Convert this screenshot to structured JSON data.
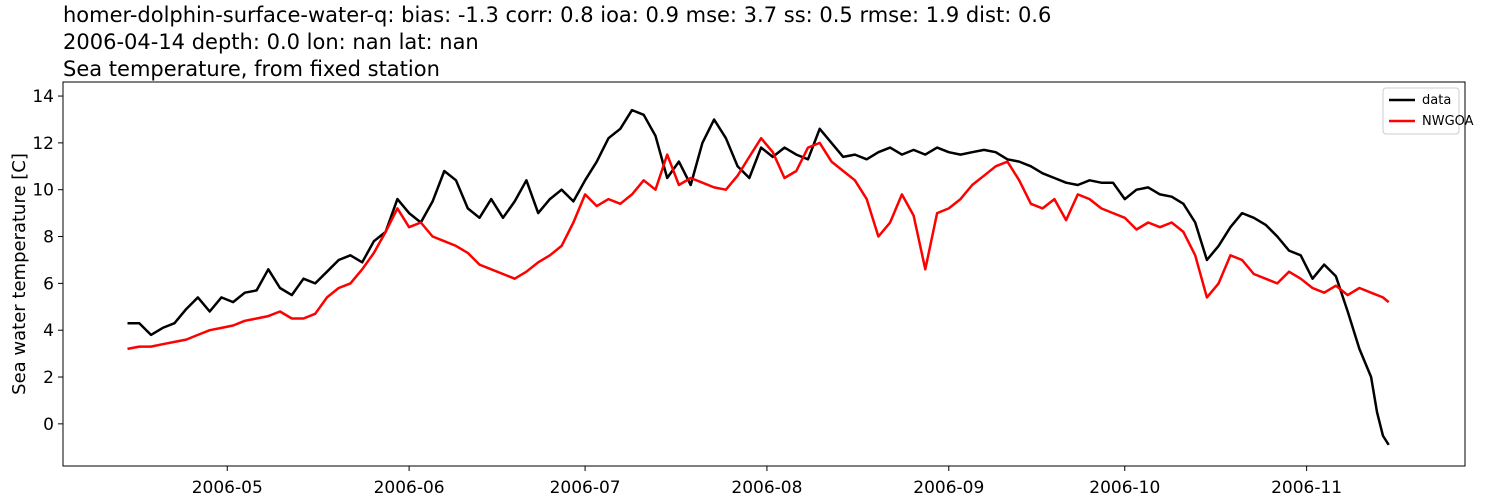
{
  "chart_data": {
    "type": "line",
    "title_lines": [
      "homer-dolphin-surface-water-q: bias: -1.3  corr: 0.8  ioa: 0.9  mse: 3.7  ss: 0.5  rmse: 1.9  dist: 0.6",
      "2006-04-14 depth: 0.0 lon: nan lat: nan",
      "Sea temperature, from fixed station"
    ],
    "xlabel": "",
    "ylabel": "Sea water temperature [C]",
    "xlim": [
      "2006-04-03",
      "2006-11-28"
    ],
    "ylim": [
      -1.8,
      14.6
    ],
    "x_ticks": [
      "2006-05-01",
      "2006-06-01",
      "2006-07-01",
      "2006-08-01",
      "2006-09-01",
      "2006-10-01",
      "2006-11-01"
    ],
    "x_tick_labels": [
      "2006-05",
      "2006-06",
      "2006-07",
      "2006-08",
      "2006-09",
      "2006-10",
      "2006-11"
    ],
    "y_ticks": [
      0,
      2,
      4,
      6,
      8,
      10,
      12,
      14
    ],
    "grid": false,
    "legend": {
      "placement": "top-right",
      "entries": [
        "data",
        "NWGOA"
      ]
    },
    "series": [
      {
        "name": "data",
        "color": "#000000",
        "points": [
          [
            "2006-04-14",
            4.3
          ],
          [
            "2006-04-16",
            4.3
          ],
          [
            "2006-04-18",
            3.8
          ],
          [
            "2006-04-20",
            4.1
          ],
          [
            "2006-04-22",
            4.3
          ],
          [
            "2006-04-24",
            4.9
          ],
          [
            "2006-04-26",
            5.4
          ],
          [
            "2006-04-28",
            4.8
          ],
          [
            "2006-04-30",
            5.4
          ],
          [
            "2006-05-02",
            5.2
          ],
          [
            "2006-05-04",
            5.6
          ],
          [
            "2006-05-06",
            5.7
          ],
          [
            "2006-05-08",
            6.6
          ],
          [
            "2006-05-10",
            5.8
          ],
          [
            "2006-05-12",
            5.5
          ],
          [
            "2006-05-14",
            6.2
          ],
          [
            "2006-05-16",
            6.0
          ],
          [
            "2006-05-18",
            6.5
          ],
          [
            "2006-05-20",
            7.0
          ],
          [
            "2006-05-22",
            7.2
          ],
          [
            "2006-05-24",
            6.9
          ],
          [
            "2006-05-26",
            7.8
          ],
          [
            "2006-05-28",
            8.2
          ],
          [
            "2006-05-30",
            9.6
          ],
          [
            "2006-06-01",
            9.0
          ],
          [
            "2006-06-03",
            8.6
          ],
          [
            "2006-06-05",
            9.5
          ],
          [
            "2006-06-07",
            10.8
          ],
          [
            "2006-06-09",
            10.4
          ],
          [
            "2006-06-11",
            9.2
          ],
          [
            "2006-06-13",
            8.8
          ],
          [
            "2006-06-15",
            9.6
          ],
          [
            "2006-06-17",
            8.8
          ],
          [
            "2006-06-19",
            9.5
          ],
          [
            "2006-06-21",
            10.4
          ],
          [
            "2006-06-23",
            9.0
          ],
          [
            "2006-06-25",
            9.6
          ],
          [
            "2006-06-27",
            10.0
          ],
          [
            "2006-06-29",
            9.5
          ],
          [
            "2006-07-01",
            10.4
          ],
          [
            "2006-07-03",
            11.2
          ],
          [
            "2006-07-05",
            12.2
          ],
          [
            "2006-07-07",
            12.6
          ],
          [
            "2006-07-09",
            13.4
          ],
          [
            "2006-07-11",
            13.2
          ],
          [
            "2006-07-13",
            12.3
          ],
          [
            "2006-07-15",
            10.5
          ],
          [
            "2006-07-17",
            11.2
          ],
          [
            "2006-07-19",
            10.2
          ],
          [
            "2006-07-21",
            12.0
          ],
          [
            "2006-07-23",
            13.0
          ],
          [
            "2006-07-25",
            12.2
          ],
          [
            "2006-07-27",
            11.0
          ],
          [
            "2006-07-29",
            10.5
          ],
          [
            "2006-07-31",
            11.8
          ],
          [
            "2006-08-02",
            11.4
          ],
          [
            "2006-08-04",
            11.8
          ],
          [
            "2006-08-06",
            11.5
          ],
          [
            "2006-08-08",
            11.3
          ],
          [
            "2006-08-10",
            12.6
          ],
          [
            "2006-08-12",
            12.0
          ],
          [
            "2006-08-14",
            11.4
          ],
          [
            "2006-08-16",
            11.5
          ],
          [
            "2006-08-18",
            11.3
          ],
          [
            "2006-08-20",
            11.6
          ],
          [
            "2006-08-22",
            11.8
          ],
          [
            "2006-08-24",
            11.5
          ],
          [
            "2006-08-26",
            11.7
          ],
          [
            "2006-08-28",
            11.5
          ],
          [
            "2006-08-30",
            11.8
          ],
          [
            "2006-09-01",
            11.6
          ],
          [
            "2006-09-03",
            11.5
          ],
          [
            "2006-09-05",
            11.6
          ],
          [
            "2006-09-07",
            11.7
          ],
          [
            "2006-09-09",
            11.6
          ],
          [
            "2006-09-11",
            11.3
          ],
          [
            "2006-09-13",
            11.2
          ],
          [
            "2006-09-15",
            11.0
          ],
          [
            "2006-09-17",
            10.7
          ],
          [
            "2006-09-19",
            10.5
          ],
          [
            "2006-09-21",
            10.3
          ],
          [
            "2006-09-23",
            10.2
          ],
          [
            "2006-09-25",
            10.4
          ],
          [
            "2006-09-27",
            10.3
          ],
          [
            "2006-09-29",
            10.3
          ],
          [
            "2006-10-01",
            9.6
          ],
          [
            "2006-10-03",
            10.0
          ],
          [
            "2006-10-05",
            10.1
          ],
          [
            "2006-10-07",
            9.8
          ],
          [
            "2006-10-09",
            9.7
          ],
          [
            "2006-10-11",
            9.4
          ],
          [
            "2006-10-13",
            8.6
          ],
          [
            "2006-10-15",
            7.0
          ],
          [
            "2006-10-17",
            7.6
          ],
          [
            "2006-10-19",
            8.4
          ],
          [
            "2006-10-21",
            9.0
          ],
          [
            "2006-10-23",
            8.8
          ],
          [
            "2006-10-25",
            8.5
          ],
          [
            "2006-10-27",
            8.0
          ],
          [
            "2006-10-29",
            7.4
          ],
          [
            "2006-10-31",
            7.2
          ],
          [
            "2006-11-02",
            6.2
          ],
          [
            "2006-11-04",
            6.8
          ],
          [
            "2006-11-06",
            6.3
          ],
          [
            "2006-11-08",
            4.8
          ],
          [
            "2006-11-10",
            3.2
          ],
          [
            "2006-11-12",
            2.0
          ],
          [
            "2006-11-13",
            0.5
          ],
          [
            "2006-11-14",
            -0.5
          ],
          [
            "2006-11-15",
            -0.9
          ]
        ]
      },
      {
        "name": "NWGOA",
        "color": "#ff0000",
        "points": [
          [
            "2006-04-14",
            3.2
          ],
          [
            "2006-04-16",
            3.3
          ],
          [
            "2006-04-18",
            3.3
          ],
          [
            "2006-04-20",
            3.4
          ],
          [
            "2006-04-22",
            3.5
          ],
          [
            "2006-04-24",
            3.6
          ],
          [
            "2006-04-26",
            3.8
          ],
          [
            "2006-04-28",
            4.0
          ],
          [
            "2006-04-30",
            4.1
          ],
          [
            "2006-05-02",
            4.2
          ],
          [
            "2006-05-04",
            4.4
          ],
          [
            "2006-05-06",
            4.5
          ],
          [
            "2006-05-08",
            4.6
          ],
          [
            "2006-05-10",
            4.8
          ],
          [
            "2006-05-12",
            4.5
          ],
          [
            "2006-05-14",
            4.5
          ],
          [
            "2006-05-16",
            4.7
          ],
          [
            "2006-05-18",
            5.4
          ],
          [
            "2006-05-20",
            5.8
          ],
          [
            "2006-05-22",
            6.0
          ],
          [
            "2006-05-24",
            6.6
          ],
          [
            "2006-05-26",
            7.3
          ],
          [
            "2006-05-28",
            8.2
          ],
          [
            "2006-05-30",
            9.2
          ],
          [
            "2006-06-01",
            8.4
          ],
          [
            "2006-06-03",
            8.6
          ],
          [
            "2006-06-05",
            8.0
          ],
          [
            "2006-06-07",
            7.8
          ],
          [
            "2006-06-09",
            7.6
          ],
          [
            "2006-06-11",
            7.3
          ],
          [
            "2006-06-13",
            6.8
          ],
          [
            "2006-06-15",
            6.6
          ],
          [
            "2006-06-17",
            6.4
          ],
          [
            "2006-06-19",
            6.2
          ],
          [
            "2006-06-21",
            6.5
          ],
          [
            "2006-06-23",
            6.9
          ],
          [
            "2006-06-25",
            7.2
          ],
          [
            "2006-06-27",
            7.6
          ],
          [
            "2006-06-29",
            8.6
          ],
          [
            "2006-07-01",
            9.8
          ],
          [
            "2006-07-03",
            9.3
          ],
          [
            "2006-07-05",
            9.6
          ],
          [
            "2006-07-07",
            9.4
          ],
          [
            "2006-07-09",
            9.8
          ],
          [
            "2006-07-11",
            10.4
          ],
          [
            "2006-07-13",
            10.0
          ],
          [
            "2006-07-15",
            11.5
          ],
          [
            "2006-07-17",
            10.2
          ],
          [
            "2006-07-19",
            10.5
          ],
          [
            "2006-07-21",
            10.3
          ],
          [
            "2006-07-23",
            10.1
          ],
          [
            "2006-07-25",
            10.0
          ],
          [
            "2006-07-27",
            10.6
          ],
          [
            "2006-07-29",
            11.4
          ],
          [
            "2006-07-31",
            12.2
          ],
          [
            "2006-08-02",
            11.6
          ],
          [
            "2006-08-04",
            10.5
          ],
          [
            "2006-08-06",
            10.8
          ],
          [
            "2006-08-08",
            11.8
          ],
          [
            "2006-08-10",
            12.0
          ],
          [
            "2006-08-12",
            11.2
          ],
          [
            "2006-08-14",
            10.8
          ],
          [
            "2006-08-16",
            10.4
          ],
          [
            "2006-08-18",
            9.6
          ],
          [
            "2006-08-20",
            8.0
          ],
          [
            "2006-08-22",
            8.6
          ],
          [
            "2006-08-24",
            9.8
          ],
          [
            "2006-08-26",
            8.9
          ],
          [
            "2006-08-28",
            6.6
          ],
          [
            "2006-08-30",
            9.0
          ],
          [
            "2006-09-01",
            9.2
          ],
          [
            "2006-09-03",
            9.6
          ],
          [
            "2006-09-05",
            10.2
          ],
          [
            "2006-09-07",
            10.6
          ],
          [
            "2006-09-09",
            11.0
          ],
          [
            "2006-09-11",
            11.2
          ],
          [
            "2006-09-13",
            10.4
          ],
          [
            "2006-09-15",
            9.4
          ],
          [
            "2006-09-17",
            9.2
          ],
          [
            "2006-09-19",
            9.6
          ],
          [
            "2006-09-21",
            8.7
          ],
          [
            "2006-09-23",
            9.8
          ],
          [
            "2006-09-25",
            9.6
          ],
          [
            "2006-09-27",
            9.2
          ],
          [
            "2006-09-29",
            9.0
          ],
          [
            "2006-10-01",
            8.8
          ],
          [
            "2006-10-03",
            8.3
          ],
          [
            "2006-10-05",
            8.6
          ],
          [
            "2006-10-07",
            8.4
          ],
          [
            "2006-10-09",
            8.6
          ],
          [
            "2006-10-11",
            8.2
          ],
          [
            "2006-10-13",
            7.2
          ],
          [
            "2006-10-15",
            5.4
          ],
          [
            "2006-10-17",
            6.0
          ],
          [
            "2006-10-19",
            7.2
          ],
          [
            "2006-10-21",
            7.0
          ],
          [
            "2006-10-23",
            6.4
          ],
          [
            "2006-10-25",
            6.2
          ],
          [
            "2006-10-27",
            6.0
          ],
          [
            "2006-10-29",
            6.5
          ],
          [
            "2006-10-31",
            6.2
          ],
          [
            "2006-11-02",
            5.8
          ],
          [
            "2006-11-04",
            5.6
          ],
          [
            "2006-11-06",
            5.9
          ],
          [
            "2006-11-08",
            5.5
          ],
          [
            "2006-11-10",
            5.8
          ],
          [
            "2006-11-12",
            5.6
          ],
          [
            "2006-11-14",
            5.4
          ],
          [
            "2006-11-15",
            5.2
          ]
        ]
      }
    ]
  }
}
